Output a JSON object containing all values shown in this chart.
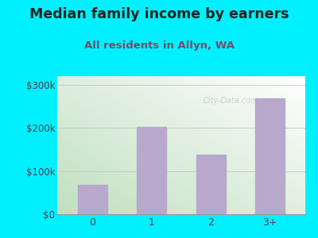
{
  "title": "Median family income by earners",
  "subtitle": "All residents in Allyn, WA",
  "categories": [
    "0",
    "1",
    "2",
    "3+"
  ],
  "values": [
    68000,
    203000,
    138000,
    268000
  ],
  "bar_color": "#b8a8cc",
  "background_outer": "#00f0ff",
  "ylim": [
    0,
    320000
  ],
  "yticks": [
    0,
    100000,
    200000,
    300000
  ],
  "ytick_labels": [
    "$0",
    "$100k",
    "$200k",
    "$300k"
  ],
  "title_color": "#222222",
  "subtitle_color": "#7a4a6a",
  "tick_color": "#5a3a4a",
  "title_fontsize": 12.5,
  "subtitle_fontsize": 9.5,
  "watermark": "City-Data.com",
  "grad_top_left": "#ddeedd",
  "grad_top_right": "#ffffff",
  "grad_bottom_left": "#c8e8c8",
  "grad_bottom_right": "#e8f4e8"
}
